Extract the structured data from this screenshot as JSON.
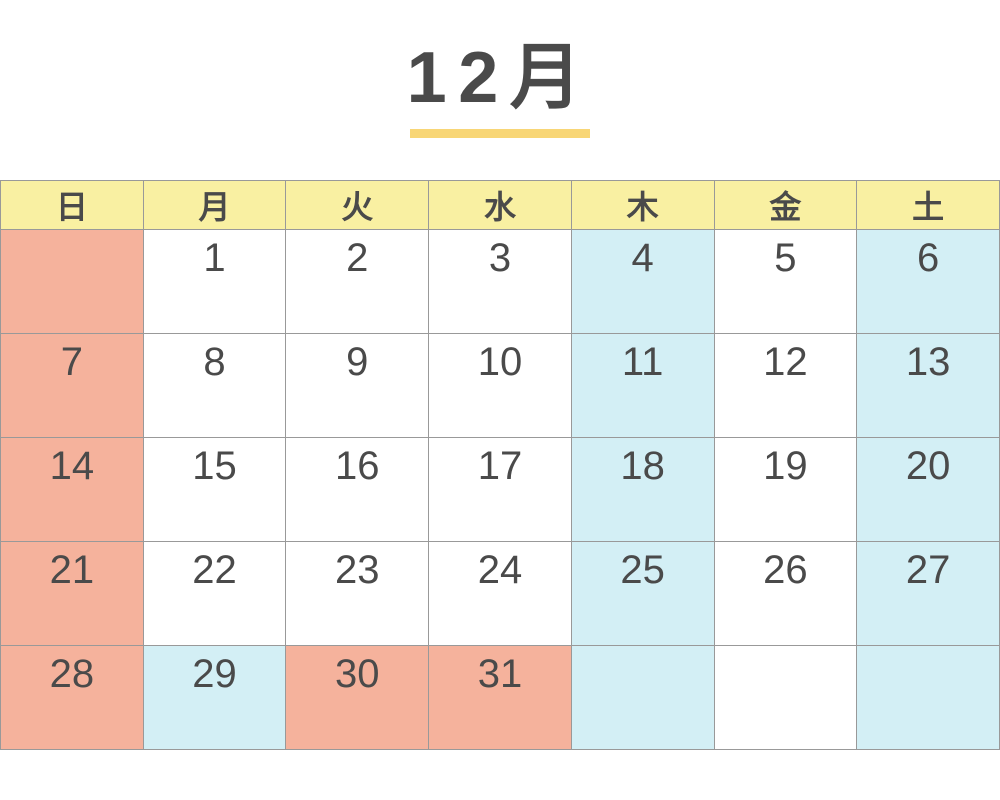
{
  "title": {
    "text": "12月"
  },
  "colors": {
    "text": "#4a4a4a",
    "underline": "#f8d676",
    "header_bg": "#f9f0a2",
    "border": "#999999",
    "pink_highlight": "#f5b29c",
    "blue_highlight": "#d3eff5"
  },
  "calendar": {
    "weekdays": [
      "日",
      "月",
      "火",
      "水",
      "木",
      "金",
      "土"
    ],
    "weeks": [
      [
        {
          "day": "",
          "highlight": "pink"
        },
        {
          "day": "1",
          "highlight": ""
        },
        {
          "day": "2",
          "highlight": ""
        },
        {
          "day": "3",
          "highlight": ""
        },
        {
          "day": "4",
          "highlight": "blue"
        },
        {
          "day": "5",
          "highlight": ""
        },
        {
          "day": "6",
          "highlight": "blue"
        }
      ],
      [
        {
          "day": "7",
          "highlight": "pink"
        },
        {
          "day": "8",
          "highlight": ""
        },
        {
          "day": "9",
          "highlight": ""
        },
        {
          "day": "10",
          "highlight": ""
        },
        {
          "day": "11",
          "highlight": "blue"
        },
        {
          "day": "12",
          "highlight": ""
        },
        {
          "day": "13",
          "highlight": "blue"
        }
      ],
      [
        {
          "day": "14",
          "highlight": "pink"
        },
        {
          "day": "15",
          "highlight": ""
        },
        {
          "day": "16",
          "highlight": ""
        },
        {
          "day": "17",
          "highlight": ""
        },
        {
          "day": "18",
          "highlight": "blue"
        },
        {
          "day": "19",
          "highlight": ""
        },
        {
          "day": "20",
          "highlight": "blue"
        }
      ],
      [
        {
          "day": "21",
          "highlight": "pink"
        },
        {
          "day": "22",
          "highlight": ""
        },
        {
          "day": "23",
          "highlight": ""
        },
        {
          "day": "24",
          "highlight": ""
        },
        {
          "day": "25",
          "highlight": "blue"
        },
        {
          "day": "26",
          "highlight": ""
        },
        {
          "day": "27",
          "highlight": "blue"
        }
      ],
      [
        {
          "day": "28",
          "highlight": "pink"
        },
        {
          "day": "29",
          "highlight": "blue"
        },
        {
          "day": "30",
          "highlight": "pink"
        },
        {
          "day": "31",
          "highlight": "pink"
        },
        {
          "day": "",
          "highlight": "blue"
        },
        {
          "day": "",
          "highlight": ""
        },
        {
          "day": "",
          "highlight": "blue"
        }
      ]
    ]
  }
}
